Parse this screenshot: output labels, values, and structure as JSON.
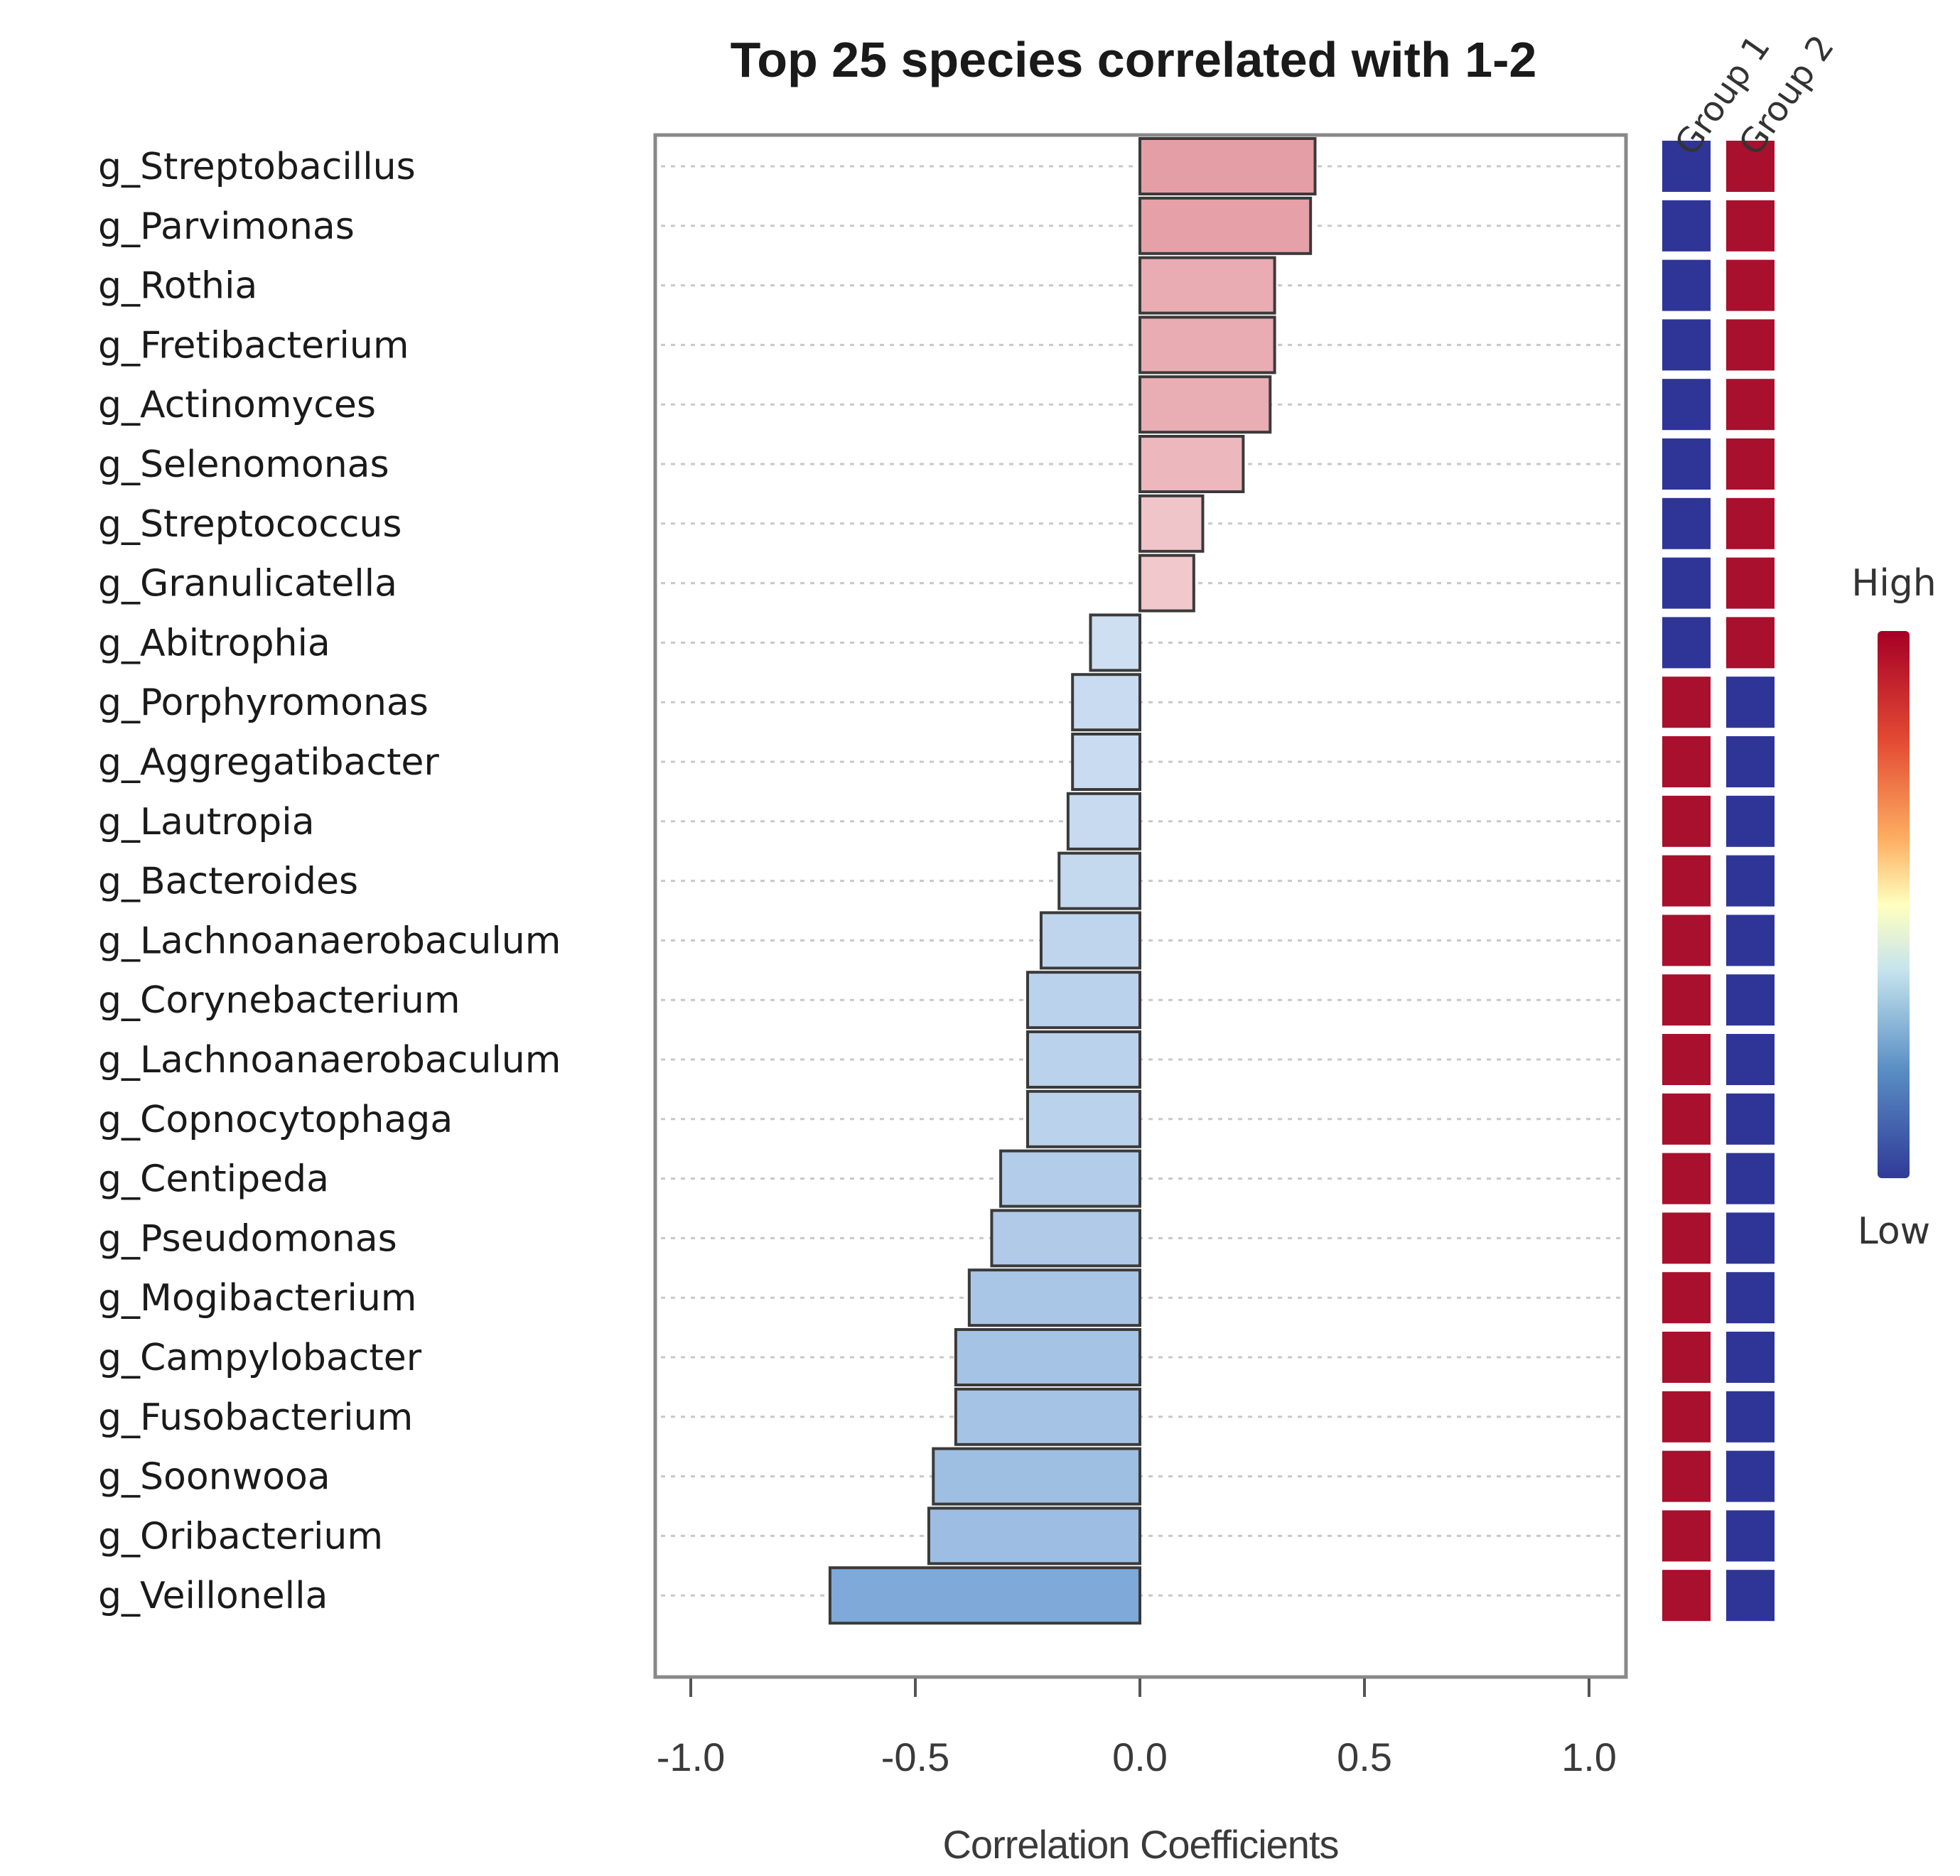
{
  "chart_data": {
    "type": "bar",
    "orientation": "horizontal",
    "title": "Top 25 species correlated with 1-2",
    "xlabel": "Correlation Coefficients",
    "ylabel": "",
    "xlim": [
      -1.0,
      1.0
    ],
    "x_ticks": [
      -1.0,
      -0.5,
      0.0,
      0.5,
      1.0
    ],
    "x_tick_labels": [
      "-1.0",
      "-0.5",
      "0.0",
      "0.5",
      "1.0"
    ],
    "grid": "dotted horizontal lines",
    "categories": [
      "g_Streptobacillus",
      "g_Parvimonas",
      "g_Rothia",
      "g_Fretibacterium",
      "g_Actinomyces",
      "g_Selenomonas",
      "g_Streptococcus",
      "g_Granulicatella",
      "g_Abitrophia",
      "g_Porphyromonas",
      "g_Aggregatibacter",
      "g_Lautropia",
      "g_Bacteroides",
      "g_Lachnoanaerobaculum",
      "g_Corynebacterium",
      "g_Lachnoanaerobaculum",
      "g_Copnocytophaga",
      "g_Centipeda",
      "g_Pseudomonas",
      "g_Mogibacterium",
      "g_Campylobacter",
      "g_Fusobacterium",
      "g_Soonwooa",
      "g_Oribacterium",
      "g_Veillonella"
    ],
    "values": [
      0.39,
      0.38,
      0.3,
      0.3,
      0.29,
      0.23,
      0.14,
      0.12,
      -0.11,
      -0.15,
      -0.15,
      -0.16,
      -0.18,
      -0.22,
      -0.25,
      -0.25,
      -0.25,
      -0.31,
      -0.33,
      -0.38,
      -0.41,
      -0.41,
      -0.46,
      -0.47,
      -0.69
    ],
    "heatmap": {
      "columns": [
        "Group 1",
        "Group 2"
      ],
      "levels": [
        [
          "low",
          "high"
        ],
        [
          "low",
          "high"
        ],
        [
          "low",
          "high"
        ],
        [
          "low",
          "high"
        ],
        [
          "low",
          "high"
        ],
        [
          "low",
          "high"
        ],
        [
          "low",
          "high"
        ],
        [
          "low",
          "high"
        ],
        [
          "low",
          "high"
        ],
        [
          "high",
          "low"
        ],
        [
          "high",
          "low"
        ],
        [
          "high",
          "low"
        ],
        [
          "high",
          "low"
        ],
        [
          "high",
          "low"
        ],
        [
          "high",
          "low"
        ],
        [
          "high",
          "low"
        ],
        [
          "high",
          "low"
        ],
        [
          "high",
          "low"
        ],
        [
          "high",
          "low"
        ],
        [
          "high",
          "low"
        ],
        [
          "high",
          "low"
        ],
        [
          "high",
          "low"
        ],
        [
          "high",
          "low"
        ],
        [
          "high",
          "low"
        ],
        [
          "high",
          "low"
        ]
      ]
    },
    "colorbar": {
      "top_label": "High",
      "bottom_label": "Low"
    }
  },
  "colors": {
    "heat_high": "#a8102e",
    "heat_low": "#2f3596",
    "frame": "#888888",
    "grid": "#c8c8c8",
    "bar_stroke": "#3a3a3a"
  }
}
